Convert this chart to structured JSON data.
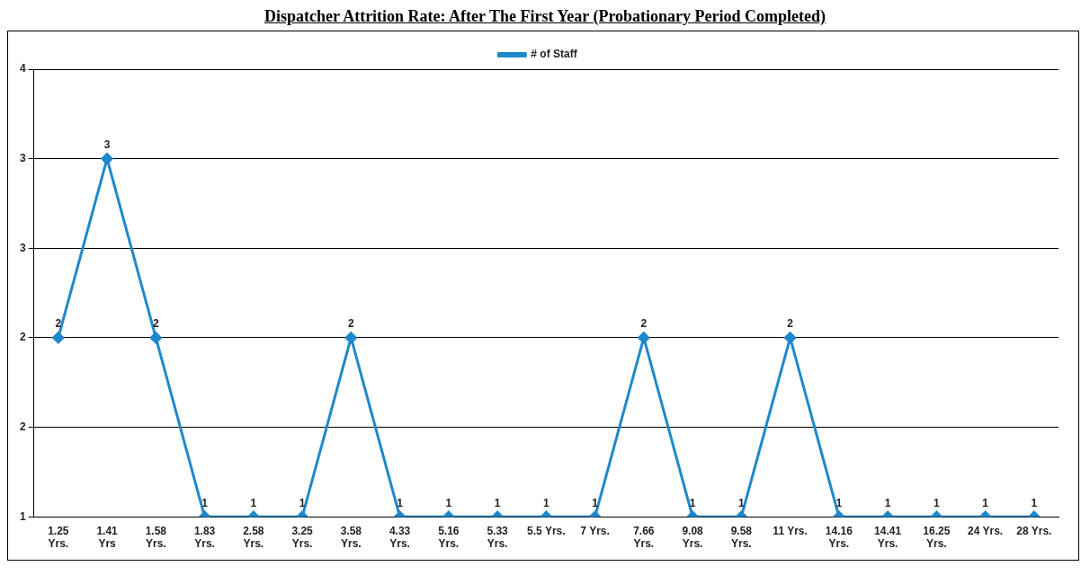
{
  "chart_data": {
    "type": "line",
    "title": "Dispatcher Attrition Rate: After The First Year (Probationary Period Completed)",
    "categories": [
      "1.25 Yrs.",
      "1.41 Yrs",
      "1.58 Yrs.",
      "1.83 Yrs.",
      "2.58 Yrs.",
      "3.25 Yrs.",
      "3.58 Yrs.",
      "4.33 Yrs.",
      "5.16 Yrs.",
      "5.33 Yrs.",
      "5.5 Yrs.",
      "7 Yrs.",
      "7.66 Yrs.",
      "9.08 Yrs.",
      "9.58 Yrs.",
      "11 Yrs.",
      "14.16 Yrs.",
      "14.41 Yrs.",
      "16.25 Yrs.",
      "24 Yrs.",
      "28 Yrs."
    ],
    "series": [
      {
        "name": "# of Staff",
        "color": "#1f88cc",
        "values": [
          2,
          3,
          2,
          1,
          1,
          1,
          2,
          1,
          1,
          1,
          1,
          1,
          2,
          1,
          1,
          2,
          1,
          1,
          1,
          1,
          1
        ]
      }
    ],
    "ylim": [
      1,
      3.5
    ],
    "yticks": [
      1,
      {
        "value": 1.5,
        "label": "2"
      },
      2,
      {
        "value": 2.5,
        "label": "3"
      },
      3,
      {
        "value": 3.5,
        "label": "4"
      }
    ],
    "grid": "y",
    "legend": "top",
    "marker": "diamond",
    "line_style": "solid",
    "data_labels": true
  }
}
